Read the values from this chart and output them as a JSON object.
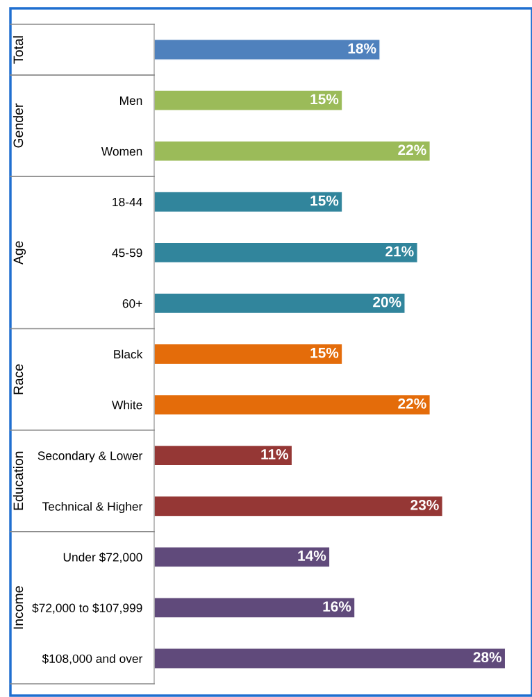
{
  "chart_data": {
    "type": "bar",
    "orientation": "horizontal",
    "categories": [
      null,
      "Men",
      "Women",
      "18-44",
      "45-59",
      "60+",
      "Black",
      "White",
      "Secondary & Lower",
      "Technical & Higher",
      "Under $72,000",
      "$72,000 to $107,999",
      "$108,000 and over"
    ],
    "values": [
      18,
      15,
      22,
      15,
      21,
      20,
      15,
      22,
      11,
      23,
      14,
      16,
      28
    ],
    "value_labels": [
      "18%",
      "15%",
      "22%",
      "15%",
      "21%",
      "20%",
      "15%",
      "22%",
      "11%",
      "23%",
      "14%",
      "16%",
      "28%"
    ],
    "colors": [
      "#4f81bd",
      "#9bbb59",
      "#9bbb59",
      "#31859c",
      "#31859c",
      "#31859c",
      "#e46c0a",
      "#e46c0a",
      "#953735",
      "#953735",
      "#604a7b",
      "#604a7b",
      "#604a7b"
    ],
    "annotations": [
      "Total",
      "Gender",
      "Age",
      "Race",
      "Education",
      "Income"
    ],
    "grid": false
  }
}
